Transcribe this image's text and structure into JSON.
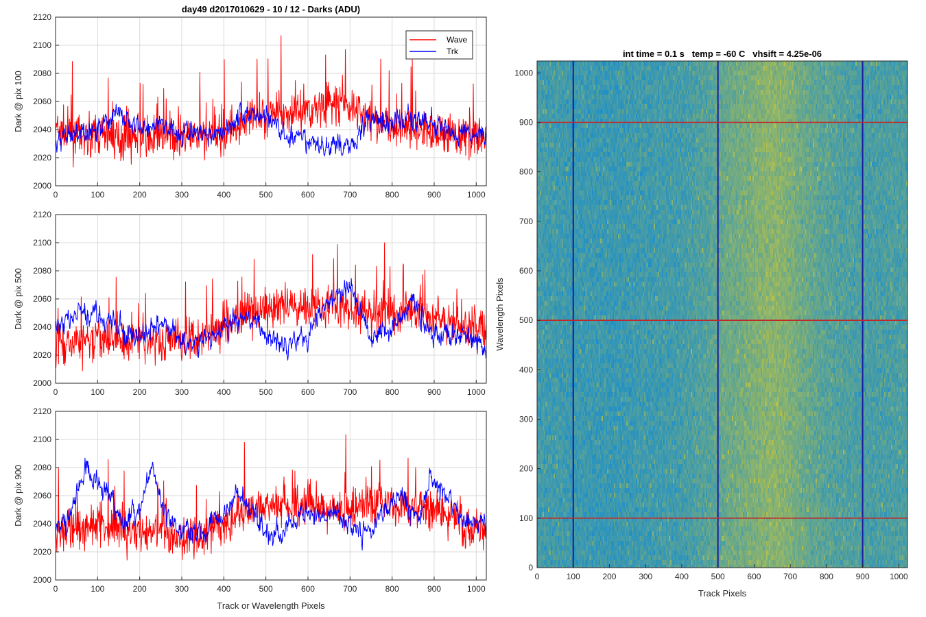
{
  "figure": {
    "suptitle": "day49 d2017010629 - 10 / 12 - Darks (ADU)",
    "shared_xlabel": "Track or Wavelength Pixels"
  },
  "colors": {
    "wave": "#ff0000",
    "trk": "#0000ff",
    "grid": "#dadada",
    "axis": "#262626",
    "heatmap_low": "#1f8fc8",
    "heatmap_high": "#b5c14a"
  },
  "legend": {
    "placement": "top-right",
    "entries": [
      "Wave",
      "Trk"
    ]
  },
  "chart_data": [
    {
      "type": "line",
      "ylabel": "Dark @ pix 100",
      "xlim": [
        0,
        1024
      ],
      "ylim": [
        2000,
        2120
      ],
      "xticks": [
        "0",
        "100",
        "200",
        "300",
        "400",
        "500",
        "600",
        "700",
        "800",
        "900",
        "1000"
      ],
      "yticks": [
        "2000",
        "2020",
        "2040",
        "2060",
        "2080",
        "2100",
        "2120"
      ],
      "grid": true,
      "series": [
        {
          "name": "Wave",
          "x": [
            0,
            50,
            100,
            150,
            200,
            250,
            300,
            350,
            400,
            450,
            500,
            550,
            600,
            650,
            700,
            750,
            800,
            850,
            900,
            950,
            1024
          ],
          "values": [
            2040,
            2034,
            2036,
            2034,
            2035,
            2034,
            2036,
            2034,
            2038,
            2045,
            2050,
            2052,
            2055,
            2058,
            2055,
            2048,
            2042,
            2040,
            2038,
            2036,
            2035
          ]
        },
        {
          "name": "Trk",
          "x": [
            0,
            50,
            100,
            150,
            200,
            250,
            300,
            350,
            400,
            450,
            500,
            550,
            600,
            650,
            700,
            750,
            800,
            850,
            900,
            950,
            1024
          ],
          "values": [
            2030,
            2035,
            2042,
            2052,
            2040,
            2045,
            2038,
            2036,
            2040,
            2052,
            2050,
            2035,
            2030,
            2028,
            2030,
            2050,
            2045,
            2048,
            2042,
            2038,
            2036
          ]
        }
      ]
    },
    {
      "type": "line",
      "ylabel": "Dark @ pix 500",
      "xlim": [
        0,
        1024
      ],
      "ylim": [
        2000,
        2120
      ],
      "xticks": [
        "0",
        "100",
        "200",
        "300",
        "400",
        "500",
        "600",
        "700",
        "800",
        "900",
        "1000"
      ],
      "yticks": [
        "2000",
        "2020",
        "2040",
        "2060",
        "2080",
        "2100",
        "2120"
      ],
      "grid": true,
      "series": [
        {
          "name": "Wave",
          "x": [
            0,
            50,
            100,
            150,
            200,
            250,
            300,
            350,
            400,
            450,
            500,
            550,
            600,
            650,
            700,
            750,
            800,
            850,
            900,
            950,
            1024
          ],
          "values": [
            2030,
            2028,
            2030,
            2032,
            2030,
            2030,
            2032,
            2035,
            2042,
            2048,
            2052,
            2055,
            2056,
            2056,
            2052,
            2050,
            2050,
            2052,
            2048,
            2042,
            2038
          ]
        },
        {
          "name": "Trk",
          "x": [
            0,
            50,
            100,
            150,
            200,
            250,
            300,
            350,
            400,
            450,
            500,
            550,
            600,
            650,
            700,
            750,
            800,
            850,
            900,
            950,
            1024
          ],
          "values": [
            2040,
            2048,
            2050,
            2038,
            2032,
            2042,
            2030,
            2028,
            2040,
            2048,
            2034,
            2030,
            2035,
            2058,
            2068,
            2035,
            2040,
            2058,
            2032,
            2036,
            2025
          ]
        }
      ]
    },
    {
      "type": "line",
      "ylabel": "Dark @ pix 900",
      "xlim": [
        0,
        1024
      ],
      "ylim": [
        2000,
        2120
      ],
      "xticks": [
        "0",
        "100",
        "200",
        "300",
        "400",
        "500",
        "600",
        "700",
        "800",
        "900",
        "1000"
      ],
      "yticks": [
        "2000",
        "2020",
        "2040",
        "2060",
        "2080",
        "2100",
        "2120"
      ],
      "xlabel_shared": true,
      "grid": true,
      "series": [
        {
          "name": "Wave",
          "x": [
            0,
            50,
            100,
            150,
            200,
            250,
            300,
            350,
            400,
            450,
            500,
            550,
            600,
            650,
            700,
            750,
            800,
            850,
            900,
            950,
            1024
          ],
          "values": [
            2032,
            2036,
            2040,
            2036,
            2034,
            2034,
            2032,
            2034,
            2040,
            2050,
            2052,
            2050,
            2055,
            2050,
            2052,
            2056,
            2054,
            2050,
            2048,
            2042,
            2036
          ]
        },
        {
          "name": "Trk",
          "x": [
            0,
            40,
            70,
            100,
            130,
            160,
            200,
            230,
            260,
            300,
            350,
            400,
            430,
            470,
            500,
            540,
            580,
            620,
            660,
            700,
            740,
            780,
            820,
            860,
            890,
            930,
            970,
            1024
          ],
          "values": [
            2035,
            2050,
            2080,
            2072,
            2060,
            2040,
            2050,
            2080,
            2045,
            2035,
            2035,
            2045,
            2065,
            2048,
            2035,
            2032,
            2048,
            2045,
            2050,
            2038,
            2035,
            2050,
            2060,
            2040,
            2072,
            2060,
            2042,
            2038
          ]
        }
      ]
    },
    {
      "type": "heatmap",
      "title": "int time = 0.1 s   temp = -60 C   vhsift = 4.25e-06",
      "xlabel": "Track Pixels",
      "ylabel": "Wavelength Pixels",
      "xlim": [
        0,
        1024
      ],
      "ylim": [
        0,
        1024
      ],
      "xticks": [
        "0",
        "100",
        "200",
        "300",
        "400",
        "500",
        "600",
        "700",
        "800",
        "900",
        "1000"
      ],
      "yticks": [
        "0",
        "100",
        "200",
        "300",
        "400",
        "500",
        "600",
        "700",
        "800",
        "900",
        "1000"
      ],
      "column_intensity": {
        "x": [
          0,
          100,
          200,
          300,
          400,
          480,
          520,
          580,
          640,
          680,
          720,
          780,
          850,
          920,
          1024
        ],
        "values": [
          0.25,
          0.2,
          0.18,
          0.22,
          0.25,
          0.38,
          0.5,
          0.58,
          0.72,
          0.68,
          0.55,
          0.4,
          0.32,
          0.28,
          0.3
        ]
      },
      "markers": {
        "vertical_lines_x": [
          100,
          500,
          900
        ],
        "horizontal_lines_y": [
          100,
          500,
          900
        ]
      }
    }
  ]
}
